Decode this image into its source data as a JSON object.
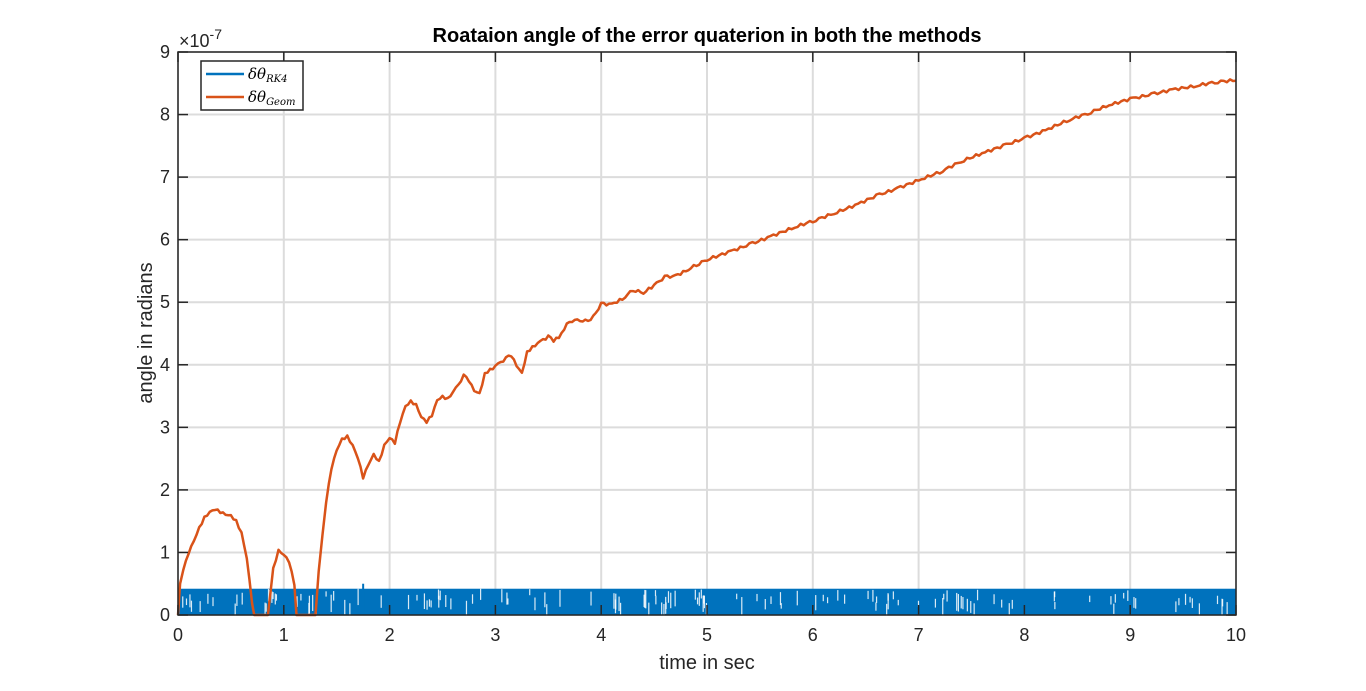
{
  "chart_data": {
    "type": "line",
    "title": "Roataion angle of the error quaterion in both the methods",
    "xlabel": "time in sec",
    "ylabel": "angle in radians",
    "xlim": [
      0,
      10
    ],
    "ylim": [
      0,
      9
    ],
    "y_exponent_label": "×10",
    "y_exponent_power": "-7",
    "x_ticks": [
      0,
      1,
      2,
      3,
      4,
      5,
      6,
      7,
      8,
      9,
      10
    ],
    "y_ticks": [
      0,
      1,
      2,
      3,
      4,
      5,
      6,
      7,
      8,
      9
    ],
    "grid": true,
    "legend_placement": "top-left",
    "series": [
      {
        "name": "δθ",
        "subscript": "RK4",
        "color": "#0072BD",
        "style": "noise-band",
        "band_min": 0,
        "band_max": 0.42,
        "notes_points": [
          [
            1.75,
            0.5
          ]
        ]
      },
      {
        "name": "δθ",
        "subscript": "Geom",
        "color": "#D95319",
        "x": [
          0,
          0.02,
          0.05,
          0.1,
          0.15,
          0.2,
          0.25,
          0.3,
          0.35,
          0.4,
          0.45,
          0.5,
          0.55,
          0.6,
          0.65,
          0.7,
          0.72,
          0.85,
          0.9,
          0.95,
          1.0,
          1.05,
          1.1,
          1.12,
          1.15,
          1.3,
          1.33,
          1.4,
          1.45,
          1.5,
          1.55,
          1.6,
          1.65,
          1.7,
          1.75,
          1.8,
          1.85,
          1.9,
          1.95,
          2.0,
          2.05,
          2.1,
          2.15,
          2.2,
          2.25,
          2.3,
          2.35,
          2.4,
          2.45,
          2.5,
          2.55,
          2.6,
          2.7,
          2.75,
          2.8,
          2.85,
          2.9,
          3.0,
          3.1,
          3.15,
          3.2,
          3.25,
          3.3,
          3.4,
          3.5,
          3.55,
          3.6,
          3.7,
          3.8,
          3.85,
          3.9,
          4.0,
          4.1,
          4.2,
          4.3,
          4.4,
          4.5,
          4.6,
          4.7,
          4.8,
          4.9,
          5.0,
          5.2,
          5.4,
          5.6,
          5.8,
          6.0,
          6.2,
          6.4,
          6.6,
          6.8,
          7.0,
          7.2,
          7.4,
          7.6,
          7.8,
          8.0,
          8.2,
          8.4,
          8.6,
          8.8,
          9.0,
          9.2,
          9.4,
          9.6,
          9.8,
          10.0
        ],
        "y": [
          0,
          0.5,
          0.7,
          1.0,
          1.2,
          1.4,
          1.55,
          1.63,
          1.68,
          1.65,
          1.62,
          1.6,
          1.5,
          1.3,
          0.9,
          0.2,
          0,
          0,
          0.75,
          1.02,
          0.95,
          0.85,
          0.5,
          0,
          0,
          0,
          0.7,
          1.8,
          2.35,
          2.65,
          2.82,
          2.85,
          2.7,
          2.5,
          2.2,
          2.42,
          2.58,
          2.45,
          2.7,
          2.82,
          2.75,
          3.1,
          3.35,
          3.42,
          3.35,
          3.15,
          3.08,
          3.2,
          3.45,
          3.5,
          3.45,
          3.55,
          3.82,
          3.75,
          3.6,
          3.55,
          3.85,
          3.98,
          4.1,
          4.15,
          4.0,
          3.88,
          4.2,
          4.35,
          4.45,
          4.38,
          4.45,
          4.7,
          4.72,
          4.7,
          4.7,
          4.97,
          4.97,
          5.05,
          5.2,
          5.15,
          5.27,
          5.4,
          5.42,
          5.5,
          5.6,
          5.68,
          5.8,
          5.92,
          6.05,
          6.18,
          6.3,
          6.42,
          6.55,
          6.7,
          6.82,
          6.95,
          7.08,
          7.25,
          7.38,
          7.5,
          7.62,
          7.75,
          7.9,
          8.02,
          8.15,
          8.25,
          8.32,
          8.4,
          8.45,
          8.52,
          8.55
        ]
      }
    ]
  }
}
